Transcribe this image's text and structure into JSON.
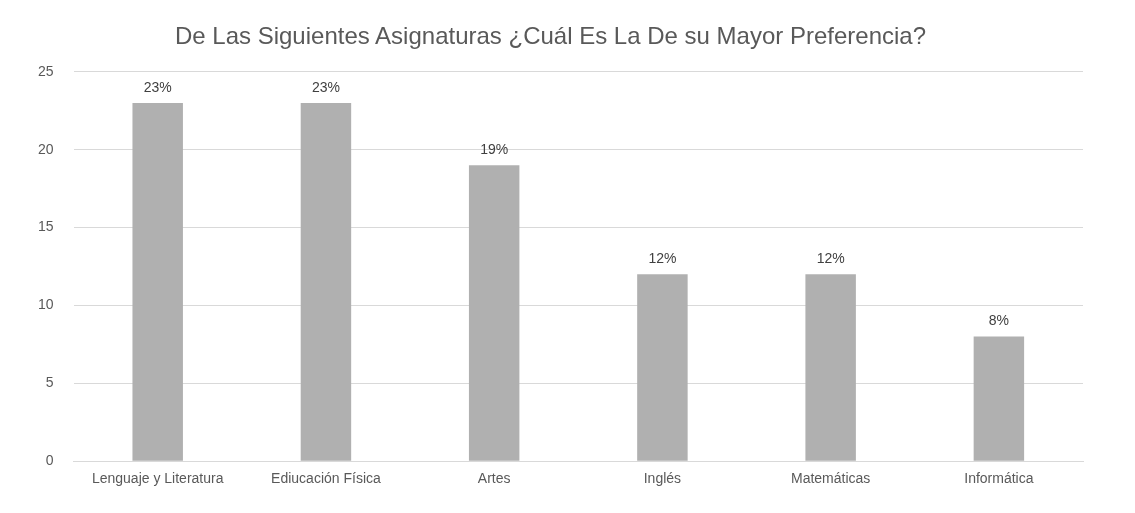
{
  "chart_data": {
    "type": "bar",
    "title": "De Las Siguientes Asignaturas ¿Cuál Es La De su Mayor Preferencia?",
    "categories": [
      "Lenguaje y Literatura",
      "Ediucación Física",
      "Artes",
      "Inglés",
      "Matemáticas",
      "Informática"
    ],
    "values": [
      23,
      23,
      19,
      12,
      12,
      8
    ],
    "value_labels": [
      "23%",
      "23%",
      "19%",
      "12%",
      "12%",
      "8%"
    ],
    "color": "#b0b0b0",
    "ylim": [
      0,
      25
    ],
    "yticks": [
      0,
      5,
      10,
      15,
      20,
      25
    ],
    "grid": "y",
    "legend": false
  }
}
